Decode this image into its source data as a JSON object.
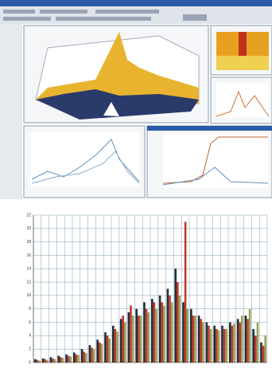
{
  "chart_data": {
    "type": "bar",
    "categories": [
      null,
      null,
      null,
      null,
      null,
      null,
      null,
      null,
      null,
      null,
      null,
      null,
      null,
      null,
      null,
      null,
      null,
      null,
      null,
      null,
      null,
      null,
      null,
      null,
      null,
      null,
      null,
      null,
      null,
      null
    ],
    "series": [
      {
        "color": "#1f2f3a",
        "values": [
          0.5,
          0.6,
          0.8,
          1,
          1.2,
          1.5,
          2,
          2.6,
          3.4,
          4.5,
          5.5,
          6.5,
          7.5,
          8,
          9,
          9.5,
          10,
          11,
          14,
          9,
          8,
          7,
          6,
          5.5,
          5.5,
          6,
          6.5,
          7,
          5,
          3
        ]
      },
      {
        "color": "#c0392b",
        "values": [
          0.4,
          0.5,
          0.6,
          0.8,
          1,
          1.2,
          1.6,
          2.2,
          3,
          4,
          5,
          7,
          8.5,
          7,
          8,
          9,
          9,
          10,
          12,
          21,
          7,
          6.5,
          5.5,
          5,
          5,
          5.5,
          6,
          6.5,
          4,
          2.5
        ]
      },
      {
        "color": "#9aa05a",
        "values": [
          0.3,
          0.4,
          0.5,
          0.7,
          0.9,
          1.1,
          1.4,
          2,
          2.8,
          3.6,
          4.6,
          6,
          7,
          7,
          7.5,
          8,
          8.5,
          9,
          10,
          8,
          7,
          6,
          5,
          4.8,
          5,
          5.8,
          7,
          8,
          6,
          4
        ]
      }
    ],
    "ylim": [
      0,
      22
    ],
    "yticks": [
      0,
      2,
      4,
      6,
      8,
      10,
      12,
      14,
      16,
      18,
      20,
      22
    ],
    "grid": true
  }
}
